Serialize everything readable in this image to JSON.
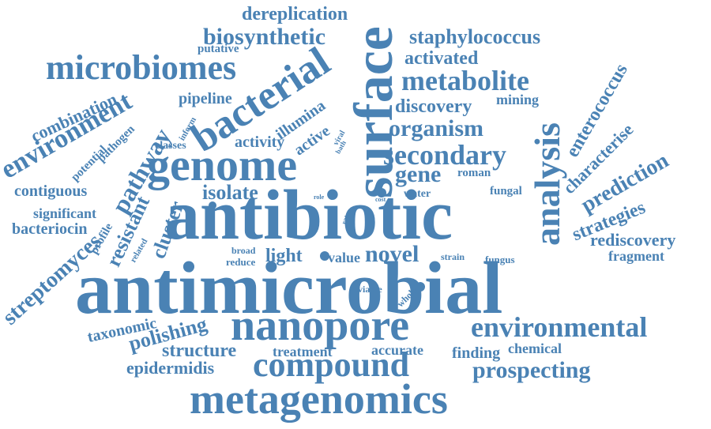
{
  "words": {
    "antimicrobial": "antimicrobial",
    "antibiotic": "antibiotic",
    "metagenomics": "metagenomics",
    "nanopore": "nanopore",
    "compound": "compound",
    "genome": "genome",
    "surface": "surface",
    "bacterial": "bacterial",
    "microbiomes": "microbiomes",
    "environmental": "environmental",
    "analysis": "analysis",
    "metabolite": "metabolite",
    "secondary": "secondary",
    "organism": "organism",
    "biosynthetic": "biosynthetic",
    "staphylococcus": "staphylococcus",
    "dereplication": "dereplication",
    "activated": "activated",
    "discovery": "discovery",
    "gene": "gene",
    "environment": "environment",
    "pathway": "pathway",
    "enterococcus": "enterococcus",
    "characterise": "characterise",
    "prediction": "prediction",
    "strategies": "strategies",
    "rediscovery": "rediscovery",
    "fragment": "fragment",
    "prospecting": "prospecting",
    "chemical": "chemical",
    "finding": "finding",
    "structure": "structure",
    "polishing": "polishing",
    "taxonomic": "taxonomic",
    "epidermidis": "epidermidis",
    "treatment": "treatment",
    "accurate": "accurate",
    "novel": "novel",
    "light": "light",
    "value": "value",
    "isolate": "isolate",
    "cluster": "cluster",
    "resistant": "resistant",
    "streptomyces": "streptomyces",
    "combination": "combination",
    "contiguous": "contiguous",
    "significant": "significant",
    "bacteriocin": "bacteriocin",
    "pipeline": "pipeline",
    "illumina": "illumina",
    "activity": "activity",
    "active": "active",
    "mining": "mining",
    "putative": "putative",
    "classes": "classes",
    "inform": "inform",
    "pathogen": "pathogen",
    "potential": "potential",
    "profile": "profile",
    "related": "related",
    "broad": "broad",
    "reduce": "reduce",
    "strain": "strain",
    "fungus": "fungus",
    "viable": "viable",
    "whole": "whole",
    "water": "water",
    "fungal": "fungal",
    "roman": "roman",
    "rate": "rate",
    "cost": "cost",
    "role": "role",
    "viral": "viral",
    "bath": "bath"
  },
  "colors": {
    "word": "#4a82b4",
    "background": "#ffffff"
  }
}
